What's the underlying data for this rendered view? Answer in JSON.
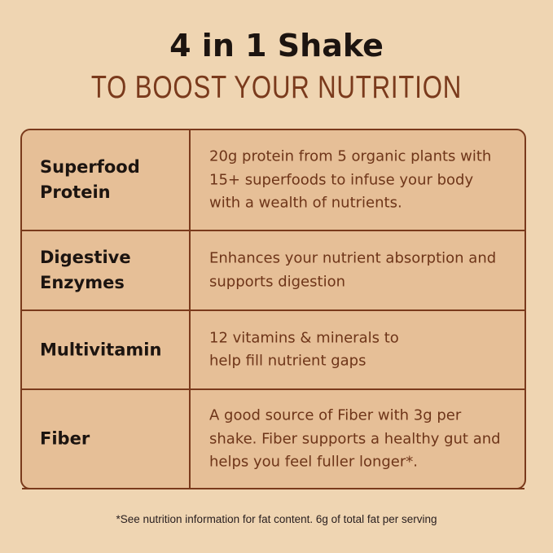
{
  "header": {
    "title": "4 in 1 Shake",
    "subtitle": "TO BOOST YOUR NUTRITION"
  },
  "rows": [
    {
      "label": "Superfood Protein",
      "description": "20g protein from 5 organic plants with 15+ superfoods to infuse your body with a wealth of nutrients."
    },
    {
      "label": "Digestive Enzymes",
      "description": "Enhances your nutrient absorption and supports digestion"
    },
    {
      "label": "Multivitamin",
      "description": "12 vitamins & minerals to help fill nutrient gaps"
    },
    {
      "label": "Fiber",
      "description": "A good source of Fiber with 3g per shake. Fiber supports a healthy gut and helps you feel fuller longer*."
    }
  ],
  "footnote": "*See nutrition information for fat content. 6g of total fat per serving",
  "colors": {
    "background": "#efd5b2",
    "table_fill": "#e6bf97",
    "accent_brown": "#7a3a1c",
    "dark_text": "#1c1410"
  }
}
